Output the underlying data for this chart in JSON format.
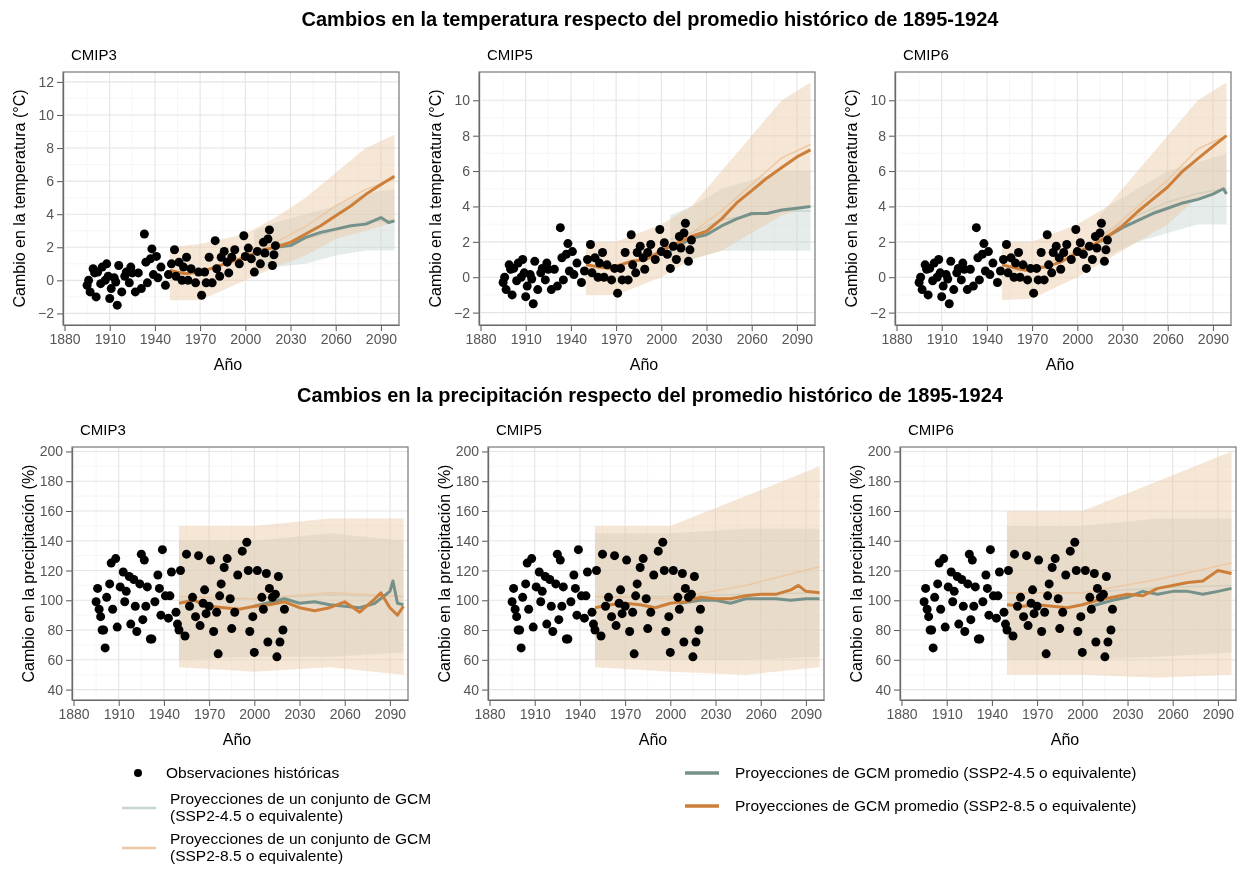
{
  "chart_data": [
    {
      "type": "line",
      "title": "Cambios en la temperatura respecto del promedio histórico de 1895-1924",
      "subtitle": "CMIP3",
      "xlabel": "Año",
      "ylabel": "Cambio en la temperatura (°C)",
      "xlim": [
        1879,
        2102
      ],
      "xticks": [
        1880,
        1910,
        1940,
        1970,
        2000,
        2030,
        2060,
        2090
      ],
      "ylim": [
        -2.7,
        12.6
      ],
      "yticks": [
        -2,
        0,
        2,
        4,
        6,
        8,
        10,
        12
      ],
      "grid": true,
      "legend": "bottom",
      "series": [
        {
          "type": "scatter",
          "name": "Observaciones históricas",
          "color": "#000000",
          "x": [
            1895,
            1896,
            1897,
            1899,
            1900,
            1901,
            1902,
            1904,
            1905,
            1907,
            1908,
            1909,
            1910,
            1911,
            1913,
            1914,
            1915,
            1916,
            1918,
            1920,
            1921,
            1923,
            1924,
            1925,
            1927,
            1929,
            1931,
            1933,
            1934,
            1935,
            1937,
            1938,
            1939,
            1941,
            1942,
            1944,
            1947,
            1949,
            1951,
            1953,
            1954,
            1956,
            1958,
            1959,
            1961,
            1962,
            1964,
            1967,
            1969,
            1971,
            1973,
            1974,
            1976,
            1978,
            1980,
            1981,
            1983,
            1984,
            1986,
            1988,
            1989,
            1991,
            1993,
            1996,
            1999,
            2000,
            2002,
            2004,
            2006,
            2008,
            2010,
            2012,
            2013,
            2015,
            2016,
            2018,
            2019,
            2020
          ],
          "values": [
            -0.3,
            0,
            -0.7,
            0.7,
            0.45,
            -1.0,
            0.5,
            -0.2,
            0.8,
            0,
            1.0,
            0.25,
            -1.1,
            -0.5,
            0.15,
            -0.1,
            -1.5,
            0.9,
            -0.7,
            0.25,
            0.5,
            -0.15,
            0.8,
            0.45,
            -0.7,
            0.45,
            -0.5,
            2.8,
            1.1,
            -0.15,
            1.3,
            1.9,
            0.35,
            1.45,
            0.15,
            0.8,
            -0.3,
            0.35,
            1.0,
            1.85,
            0.25,
            1.1,
            0,
            0.8,
            1.4,
            0,
            0.7,
            -0.15,
            0.5,
            -0.9,
            0.5,
            -0.15,
            1.4,
            -0.15,
            2.4,
            0.7,
            0.25,
            1.4,
            1.75,
            1.1,
            0.45,
            1.4,
            1.85,
            1.0,
            2.7,
            1.45,
            1.95,
            1.3,
            0.5,
            1.75,
            1.0,
            2.3,
            1.65,
            2.5,
            3.05,
            0.9,
            1.55,
            2.1
          ]
        },
        {
          "name": "Proyecciones de un conjunto de GCM (SSP2-4.5 o equivalente)",
          "color": "#c5d5d0",
          "x": [
            2006,
            2020,
            2040,
            2060,
            2080,
            2099
          ],
          "values": [
            1.75,
            2.15,
            2.5,
            3.0,
            3.55,
            3.65
          ],
          "lower": [
            0.5,
            0.8,
            1.0,
            1.5,
            1.8,
            1.8
          ],
          "upper": [
            3.0,
            3.5,
            4.0,
            4.5,
            5.3,
            5.5
          ]
        },
        {
          "name": "Proyecciones de un conjunto de GCM (SSP2-8.5 o equivalente)",
          "color": "#ecc8a4",
          "x": [
            1950,
            1970,
            2000,
            2020,
            2040,
            2060,
            2080,
            2099
          ],
          "values": [
            0.4,
            0.5,
            1.4,
            2.3,
            3.25,
            4.5,
            5.5,
            6.15
          ],
          "lower": [
            -1.2,
            -1.2,
            0,
            0.8,
            1.5,
            2.5,
            3.0,
            3.5
          ],
          "upper": [
            2.0,
            2.2,
            2.8,
            3.8,
            5.0,
            6.5,
            8.0,
            8.8
          ]
        },
        {
          "name": "Proyecciones de GCM promedio (SSP2-4.5 o equivalente)",
          "color": "#75918a",
          "x": [
            2020,
            2030,
            2040,
            2050,
            2060,
            2070,
            2080,
            2090,
            2095,
            2099
          ],
          "values": [
            2.0,
            2.1,
            2.6,
            2.9,
            3.1,
            3.3,
            3.4,
            3.8,
            3.5,
            3.6
          ]
        },
        {
          "name": "Proyecciones de GCM promedio (SSP2-8.5 o equivalente)",
          "color": "#cd7f3a",
          "x": [
            1950,
            1960,
            1970,
            1980,
            1990,
            2000,
            2010,
            2020,
            2030,
            2040,
            2050,
            2060,
            2070,
            2080,
            2090,
            2099
          ],
          "values": [
            0.6,
            0.4,
            0.5,
            0.8,
            1.1,
            1.4,
            1.8,
            2.0,
            2.3,
            2.8,
            3.3,
            3.9,
            4.5,
            5.2,
            5.8,
            6.3
          ]
        }
      ]
    },
    {
      "type": "line",
      "subtitle": "CMIP5",
      "xlabel": "Año",
      "ylabel": "Cambio en la temperatura (°C)",
      "xlim": [
        1879,
        2102
      ],
      "xticks": [
        1880,
        1910,
        1940,
        1970,
        2000,
        2030,
        2060,
        2090
      ],
      "ylim": [
        -2.7,
        11.6
      ],
      "yticks": [
        -2,
        0,
        2,
        4,
        6,
        8,
        10
      ],
      "grid": true,
      "series": [
        {
          "type": "scatter",
          "color": "#000000",
          "x": [
            1895,
            1896,
            1897,
            1899,
            1900,
            1901,
            1902,
            1904,
            1905,
            1907,
            1908,
            1909,
            1910,
            1911,
            1913,
            1914,
            1915,
            1916,
            1918,
            1920,
            1921,
            1923,
            1924,
            1925,
            1927,
            1929,
            1931,
            1933,
            1934,
            1935,
            1937,
            1938,
            1939,
            1941,
            1942,
            1944,
            1947,
            1949,
            1951,
            1953,
            1954,
            1956,
            1958,
            1959,
            1961,
            1962,
            1964,
            1967,
            1969,
            1971,
            1973,
            1974,
            1976,
            1978,
            1980,
            1981,
            1983,
            1984,
            1986,
            1988,
            1989,
            1991,
            1993,
            1996,
            1999,
            2000,
            2002,
            2004,
            2006,
            2008,
            2010,
            2012,
            2013,
            2015,
            2016,
            2018,
            2019,
            2020
          ],
          "values": [
            -0.3,
            0,
            -0.7,
            0.7,
            0.45,
            -1.0,
            0.5,
            -0.2,
            0.8,
            0,
            1.0,
            0.25,
            -1.1,
            -0.5,
            0.15,
            -0.1,
            -1.5,
            0.9,
            -0.7,
            0.25,
            0.5,
            -0.15,
            0.8,
            0.45,
            -0.7,
            0.45,
            -0.5,
            2.8,
            1.1,
            -0.15,
            1.3,
            1.9,
            0.35,
            1.45,
            0.15,
            0.8,
            -0.3,
            0.35,
            1.0,
            1.85,
            0.25,
            1.1,
            0,
            0.8,
            1.4,
            0,
            0.7,
            -0.15,
            0.5,
            -0.9,
            0.5,
            -0.15,
            1.4,
            -0.15,
            2.4,
            0.7,
            0.25,
            1.4,
            1.75,
            1.1,
            0.45,
            1.4,
            1.85,
            1.0,
            2.7,
            1.45,
            1.95,
            1.3,
            0.5,
            1.75,
            1.0,
            2.3,
            1.65,
            2.5,
            3.05,
            0.9,
            1.55,
            2.1
          ]
        },
        {
          "color": "#c5d5d0",
          "x": [
            2006,
            2020,
            2040,
            2060,
            2080,
            2099
          ],
          "values": [
            2.15,
            2.5,
            3.25,
            3.5,
            3.75,
            3.75
          ],
          "lower": [
            0.8,
            1.0,
            1.5,
            1.5,
            1.5,
            1.5
          ],
          "upper": [
            3.5,
            4.0,
            5.0,
            5.5,
            6.0,
            6.0
          ]
        },
        {
          "color": "#ecc8a4",
          "x": [
            1950,
            1970,
            2000,
            2020,
            2040,
            2060,
            2080,
            2099
          ],
          "values": [
            0.5,
            0.5,
            1.5,
            2.5,
            3.75,
            5.25,
            6.75,
            7.5
          ],
          "lower": [
            -1.0,
            -1.0,
            0,
            1.0,
            1.5,
            2.5,
            3.5,
            4.0
          ],
          "upper": [
            2.0,
            2.0,
            3.0,
            4.0,
            6.0,
            8.0,
            10.0,
            11.0
          ]
        },
        {
          "color": "#75918a",
          "x": [
            2006,
            2020,
            2030,
            2040,
            2050,
            2060,
            2070,
            2080,
            2090,
            2099
          ],
          "values": [
            1.5,
            2.2,
            2.4,
            2.9,
            3.3,
            3.6,
            3.6,
            3.8,
            3.9,
            4.0
          ]
        },
        {
          "color": "#cd7f3a",
          "x": [
            1950,
            1965,
            1980,
            1990,
            2000,
            2010,
            2020,
            2030,
            2040,
            2050,
            2060,
            2070,
            2080,
            2090,
            2099
          ],
          "values": [
            0.7,
            0.5,
            0.9,
            1.0,
            1.5,
            1.9,
            2.3,
            2.6,
            3.3,
            4.2,
            4.9,
            5.6,
            6.2,
            6.8,
            7.2
          ]
        }
      ]
    },
    {
      "type": "line",
      "subtitle": "CMIP6",
      "xlabel": "Año",
      "ylabel": "Cambio en la temperatura (°C)",
      "xlim": [
        1879,
        2102
      ],
      "xticks": [
        1880,
        1910,
        1940,
        1970,
        2000,
        2030,
        2060,
        2090
      ],
      "ylim": [
        -2.7,
        11.6
      ],
      "yticks": [
        -2,
        0,
        2,
        4,
        6,
        8,
        10
      ],
      "grid": true,
      "series": [
        {
          "type": "scatter",
          "color": "#000000",
          "x": [
            1895,
            1896,
            1897,
            1899,
            1900,
            1901,
            1902,
            1904,
            1905,
            1907,
            1908,
            1909,
            1910,
            1911,
            1913,
            1914,
            1915,
            1916,
            1918,
            1920,
            1921,
            1923,
            1924,
            1925,
            1927,
            1929,
            1931,
            1933,
            1934,
            1935,
            1937,
            1938,
            1939,
            1941,
            1942,
            1944,
            1947,
            1949,
            1951,
            1953,
            1954,
            1956,
            1958,
            1959,
            1961,
            1962,
            1964,
            1967,
            1969,
            1971,
            1973,
            1974,
            1976,
            1978,
            1980,
            1981,
            1983,
            1984,
            1986,
            1988,
            1989,
            1991,
            1993,
            1996,
            1999,
            2000,
            2002,
            2004,
            2006,
            2008,
            2010,
            2012,
            2013,
            2015,
            2016,
            2018,
            2019,
            2020
          ],
          "values": [
            -0.3,
            0,
            -0.7,
            0.7,
            0.45,
            -1.0,
            0.5,
            -0.2,
            0.8,
            0,
            1.0,
            0.25,
            -1.1,
            -0.5,
            0.15,
            -0.1,
            -1.5,
            0.9,
            -0.7,
            0.25,
            0.5,
            -0.15,
            0.8,
            0.45,
            -0.7,
            0.45,
            -0.5,
            2.8,
            1.1,
            -0.15,
            1.3,
            1.9,
            0.35,
            1.45,
            0.15,
            0.8,
            -0.3,
            0.35,
            1.0,
            1.85,
            0.25,
            1.1,
            0,
            0.8,
            1.4,
            0,
            0.7,
            -0.15,
            0.5,
            -0.9,
            0.5,
            -0.15,
            1.4,
            -0.15,
            2.4,
            0.7,
            0.25,
            1.4,
            1.75,
            1.1,
            0.45,
            1.4,
            1.85,
            1.0,
            2.7,
            1.45,
            1.95,
            1.3,
            0.5,
            1.75,
            1.0,
            2.3,
            1.65,
            2.5,
            3.05,
            0.9,
            1.55,
            2.1
          ]
        },
        {
          "color": "#c5d5d0",
          "x": [
            2015,
            2020,
            2040,
            2060,
            2080,
            2099
          ],
          "values": [
            2.25,
            2.6,
            3.5,
            4.25,
            4.75,
            5.0
          ],
          "lower": [
            1.0,
            1.2,
            2.0,
            2.5,
            3.0,
            3.0
          ],
          "upper": [
            3.5,
            4.0,
            5.0,
            6.0,
            6.5,
            7.0
          ]
        },
        {
          "color": "#ecc8a4",
          "x": [
            1950,
            1970,
            2000,
            2020,
            2040,
            2060,
            2080,
            2099
          ],
          "values": [
            0.35,
            0.4,
            1.5,
            2.5,
            4.0,
            5.5,
            7.25,
            8.0
          ],
          "lower": [
            -1.3,
            -1.2,
            0,
            1.0,
            2.0,
            3.0,
            4.5,
            5.0
          ],
          "upper": [
            2.0,
            2.0,
            3.0,
            4.0,
            6.0,
            8.0,
            10.0,
            11.0
          ]
        },
        {
          "color": "#75918a",
          "x": [
            2015,
            2020,
            2030,
            2040,
            2050,
            2060,
            2070,
            2080,
            2090,
            2097,
            2099
          ],
          "values": [
            2.0,
            2.3,
            2.8,
            3.2,
            3.6,
            3.9,
            4.2,
            4.4,
            4.7,
            5.0,
            4.7
          ]
        },
        {
          "color": "#cd7f3a",
          "x": [
            1950,
            1965,
            1980,
            1990,
            2000,
            2010,
            2020,
            2030,
            2040,
            2050,
            2060,
            2070,
            2080,
            2090,
            2099
          ],
          "values": [
            0.7,
            0.4,
            0.6,
            0.9,
            1.4,
            1.8,
            2.3,
            2.9,
            3.7,
            4.4,
            5.1,
            6.0,
            6.7,
            7.4,
            8.0
          ]
        }
      ]
    },
    {
      "type": "line",
      "title": "Cambios en la precipitación respecto del promedio histórico de 1895-1924",
      "subtitle": "CMIP3",
      "xlabel": "Año",
      "ylabel": "Cambio en la precipitación (%)",
      "xlim": [
        1879,
        2102
      ],
      "xticks": [
        1880,
        1910,
        1940,
        1970,
        2000,
        2030,
        2060,
        2090
      ],
      "ylim": [
        33,
        203
      ],
      "yticks": [
        40,
        60,
        80,
        100,
        120,
        140,
        160,
        180,
        200
      ],
      "grid": true,
      "series": [
        {
          "type": "scatter",
          "color": "#000000",
          "x": [
            1895,
            1896,
            1897,
            1898,
            1899,
            1900,
            1901,
            1902,
            1904,
            1905,
            1906,
            1908,
            1909,
            1911,
            1913,
            1914,
            1915,
            1917,
            1918,
            1920,
            1921,
            1922,
            1924,
            1925,
            1926,
            1927,
            1928,
            1929,
            1931,
            1932,
            1934,
            1936,
            1937,
            1938,
            1939,
            1941,
            1943,
            1944,
            1945,
            1948,
            1949,
            1950,
            1951,
            1954,
            1955,
            1957,
            1959,
            1961,
            1963,
            1964,
            1966,
            1967,
            1968,
            1970,
            1971,
            1973,
            1975,
            1976,
            1977,
            1978,
            1980,
            1982,
            1984,
            1985,
            1987,
            1989,
            1992,
            1995,
            1996,
            1997,
            1999,
            2000,
            2002,
            2005,
            2006,
            2008,
            2009,
            2010,
            2012,
            2014,
            2015,
            2016,
            2017,
            2019,
            2020
          ],
          "values": [
            99,
            108,
            94,
            89,
            80,
            80,
            68,
            102,
            111,
            125,
            94,
            128,
            82,
            109,
            119,
            99,
            106,
            116,
            84,
            114,
            96,
            79,
            111,
            131,
            87,
            127,
            96,
            109,
            74,
            74,
            99,
            117,
            108,
            90,
            134,
            103,
            88,
            103,
            119,
            92,
            84,
            80,
            120,
            76,
            131,
            96,
            102,
            89,
            130,
            83,
            98,
            107,
            91,
            96,
            127,
            79,
            92,
            64,
            103,
            111,
            122,
            128,
            101,
            81,
            92,
            117,
            133,
            139,
            120,
            79,
            89,
            65,
            120,
            102,
            94,
            118,
            72,
            108,
            102,
            104,
            62,
            116,
            72,
            80,
            94
          ]
        },
        {
          "color": "#c5d5d0",
          "x": [
            1950,
            2000,
            2050,
            2099
          ],
          "values": [
            100,
            101,
            103.5,
            102.5
          ],
          "lower": [
            60,
            62,
            62,
            65
          ],
          "upper": [
            140,
            140,
            145,
            140
          ]
        },
        {
          "color": "#ecc8a4",
          "x": [
            1950,
            2000,
            2050,
            2099
          ],
          "values": [
            102.5,
            101,
            105,
            102.5
          ],
          "lower": [
            55,
            52,
            55,
            50
          ],
          "upper": [
            150,
            150,
            155,
            155
          ]
        },
        {
          "color": "#75918a",
          "x": [
            2000,
            2020,
            2030,
            2040,
            2050,
            2060,
            2070,
            2080,
            2090,
            2092,
            2095,
            2099
          ],
          "values": [
            96,
            101,
            98,
            99,
            97,
            96,
            95,
            98,
            106,
            113,
            98,
            97
          ]
        },
        {
          "color": "#cd7f3a",
          "x": [
            1950,
            1960,
            1970,
            1980,
            1990,
            2000,
            2010,
            2020,
            2030,
            2040,
            2050,
            2060,
            2070,
            2080,
            2084,
            2090,
            2095,
            2099
          ],
          "values": [
            98,
            100,
            96,
            95,
            94,
            96,
            97,
            99,
            95,
            93,
            95,
            99,
            92,
            101,
            105,
            95,
            90,
            96
          ]
        }
      ]
    },
    {
      "type": "line",
      "subtitle": "CMIP5",
      "xlabel": "Año",
      "ylabel": "Cambio en la precipitación (%)",
      "xlim": [
        1879,
        2102
      ],
      "xticks": [
        1880,
        1910,
        1940,
        1970,
        2000,
        2030,
        2060,
        2090
      ],
      "ylim": [
        33,
        203
      ],
      "yticks": [
        40,
        60,
        80,
        100,
        120,
        140,
        160,
        180,
        200
      ],
      "grid": true,
      "series": [
        {
          "type": "scatter",
          "color": "#000000",
          "x": [
            1895,
            1896,
            1897,
            1898,
            1899,
            1900,
            1901,
            1902,
            1904,
            1905,
            1906,
            1908,
            1909,
            1911,
            1913,
            1914,
            1915,
            1917,
            1918,
            1920,
            1921,
            1922,
            1924,
            1925,
            1926,
            1927,
            1928,
            1929,
            1931,
            1932,
            1934,
            1936,
            1937,
            1938,
            1939,
            1941,
            1943,
            1944,
            1945,
            1948,
            1949,
            1950,
            1951,
            1954,
            1955,
            1957,
            1959,
            1961,
            1963,
            1964,
            1966,
            1967,
            1968,
            1970,
            1971,
            1973,
            1975,
            1976,
            1977,
            1978,
            1980,
            1982,
            1984,
            1985,
            1987,
            1989,
            1992,
            1995,
            1996,
            1997,
            1999,
            2000,
            2002,
            2005,
            2006,
            2008,
            2009,
            2010,
            2012,
            2014,
            2015,
            2016,
            2017,
            2019,
            2020
          ],
          "values": [
            99,
            108,
            94,
            89,
            80,
            80,
            68,
            102,
            111,
            125,
            94,
            128,
            82,
            109,
            119,
            99,
            106,
            116,
            84,
            114,
            96,
            79,
            111,
            131,
            87,
            127,
            96,
            109,
            74,
            74,
            99,
            117,
            108,
            90,
            134,
            103,
            88,
            103,
            119,
            92,
            84,
            80,
            120,
            76,
            131,
            96,
            102,
            89,
            130,
            83,
            98,
            107,
            91,
            96,
            127,
            79,
            92,
            64,
            103,
            111,
            122,
            128,
            101,
            81,
            92,
            117,
            133,
            139,
            120,
            79,
            89,
            65,
            120,
            102,
            94,
            118,
            72,
            108,
            102,
            104,
            62,
            116,
            72,
            80,
            94
          ]
        },
        {
          "color": "#c5d5d0",
          "x": [
            1950,
            2000,
            2050,
            2099
          ],
          "values": [
            102.5,
            102.5,
            104,
            105
          ],
          "lower": [
            60,
            60,
            60,
            62
          ],
          "upper": [
            145,
            145,
            148,
            148
          ]
        },
        {
          "color": "#ecc8a4",
          "x": [
            1950,
            2000,
            2050,
            2099
          ],
          "values": [
            102.5,
            101,
            110,
            122.5
          ],
          "lower": [
            55,
            52,
            50,
            55
          ],
          "upper": [
            150,
            150,
            170,
            190
          ]
        },
        {
          "color": "#75918a",
          "x": [
            2006,
            2020,
            2030,
            2040,
            2050,
            2060,
            2070,
            2080,
            2090,
            2099
          ],
          "values": [
            98,
            100,
            100,
            98,
            101,
            101,
            101,
            100,
            101,
            101
          ]
        },
        {
          "color": "#cd7f3a",
          "x": [
            1950,
            1960,
            1970,
            1980,
            1990,
            2000,
            2010,
            2020,
            2030,
            2040,
            2050,
            2060,
            2070,
            2080,
            2085,
            2090,
            2099
          ],
          "values": [
            95,
            97,
            98,
            97,
            95,
            98,
            99,
            102,
            101,
            101,
            103,
            104,
            104,
            107,
            110,
            106,
            105
          ]
        }
      ]
    },
    {
      "type": "line",
      "subtitle": "CMIP6",
      "xlabel": "Año",
      "ylabel": "Cambio en la precipitación (%)",
      "xlim": [
        1879,
        2102
      ],
      "xticks": [
        1880,
        1910,
        1940,
        1970,
        2000,
        2030,
        2060,
        2090
      ],
      "ylim": [
        33,
        203
      ],
      "yticks": [
        40,
        60,
        80,
        100,
        120,
        140,
        160,
        180,
        200
      ],
      "grid": true,
      "series": [
        {
          "type": "scatter",
          "color": "#000000",
          "x": [
            1895,
            1896,
            1897,
            1898,
            1899,
            1900,
            1901,
            1902,
            1904,
            1905,
            1906,
            1908,
            1909,
            1911,
            1913,
            1914,
            1915,
            1917,
            1918,
            1920,
            1921,
            1922,
            1924,
            1925,
            1926,
            1927,
            1928,
            1929,
            1931,
            1932,
            1934,
            1936,
            1937,
            1938,
            1939,
            1941,
            1943,
            1944,
            1945,
            1948,
            1949,
            1950,
            1951,
            1954,
            1955,
            1957,
            1959,
            1961,
            1963,
            1964,
            1966,
            1967,
            1968,
            1970,
            1971,
            1973,
            1975,
            1976,
            1977,
            1978,
            1980,
            1982,
            1984,
            1985,
            1987,
            1989,
            1992,
            1995,
            1996,
            1997,
            1999,
            2000,
            2002,
            2005,
            2006,
            2008,
            2009,
            2010,
            2012,
            2014,
            2015,
            2016,
            2017,
            2019,
            2020
          ],
          "values": [
            99,
            108,
            94,
            89,
            80,
            80,
            68,
            102,
            111,
            125,
            94,
            128,
            82,
            109,
            119,
            99,
            106,
            116,
            84,
            114,
            96,
            79,
            111,
            131,
            87,
            127,
            96,
            109,
            74,
            74,
            99,
            117,
            108,
            90,
            134,
            103,
            88,
            103,
            119,
            92,
            84,
            80,
            120,
            76,
            131,
            96,
            102,
            89,
            130,
            83,
            98,
            107,
            91,
            96,
            127,
            79,
            92,
            64,
            103,
            111,
            122,
            128,
            101,
            81,
            92,
            117,
            133,
            139,
            120,
            79,
            89,
            65,
            120,
            102,
            94,
            118,
            72,
            108,
            102,
            104,
            62,
            116,
            72,
            80,
            94
          ]
        },
        {
          "color": "#c5d5d0",
          "x": [
            1950,
            2000,
            2050,
            2099
          ],
          "values": [
            105,
            105,
            108.5,
            110
          ],
          "lower": [
            60,
            60,
            62,
            65
          ],
          "upper": [
            150,
            150,
            155,
            155
          ]
        },
        {
          "color": "#ecc8a4",
          "x": [
            1950,
            2000,
            2050,
            2099
          ],
          "values": [
            105,
            105,
            114,
            125
          ],
          "lower": [
            50,
            50,
            48,
            50
          ],
          "upper": [
            160,
            160,
            180,
            200
          ]
        },
        {
          "color": "#75918a",
          "x": [
            2006,
            2020,
            2030,
            2040,
            2050,
            2060,
            2070,
            2080,
            2090,
            2099
          ],
          "values": [
            96,
            100,
            102,
            106,
            104,
            106,
            106,
            104,
            106,
            108
          ]
        },
        {
          "color": "#cd7f3a",
          "x": [
            1950,
            1960,
            1970,
            1980,
            1990,
            2000,
            2010,
            2020,
            2030,
            2040,
            2050,
            2060,
            2070,
            2080,
            2090,
            2099
          ],
          "values": [
            97,
            96,
            97,
            96,
            95,
            97,
            100,
            102,
            104,
            103,
            108,
            110,
            112,
            113,
            120,
            118
          ]
        }
      ]
    }
  ]
}
